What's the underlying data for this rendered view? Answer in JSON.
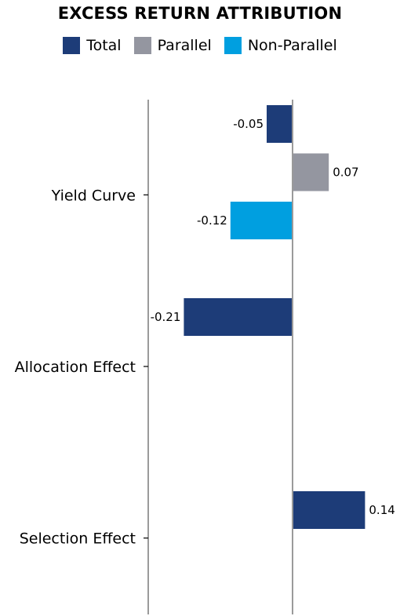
{
  "colors": {
    "total": "#1d3c78",
    "parallel": "#9496a0",
    "non_parallel": "#009fe0",
    "axis": "#9a9a9a"
  },
  "chart_data": {
    "type": "bar",
    "orientation": "horizontal",
    "title": "EXCESS RETURN ATTRIBUTION",
    "categories": [
      "Yield Curve",
      "Allocation Effect",
      "Selection Effect"
    ],
    "series": [
      {
        "name": "Total",
        "values": [
          -0.05,
          -0.21,
          0.14
        ]
      },
      {
        "name": "Parallel",
        "values": [
          0.07,
          null,
          null
        ]
      },
      {
        "name": "Non-Parallel",
        "values": [
          -0.12,
          null,
          null
        ]
      }
    ],
    "data_labels": [
      "-0.05",
      "0.07",
      "-0.12",
      "-0.21",
      "0.14"
    ],
    "legend_position": "top",
    "grid": false
  }
}
